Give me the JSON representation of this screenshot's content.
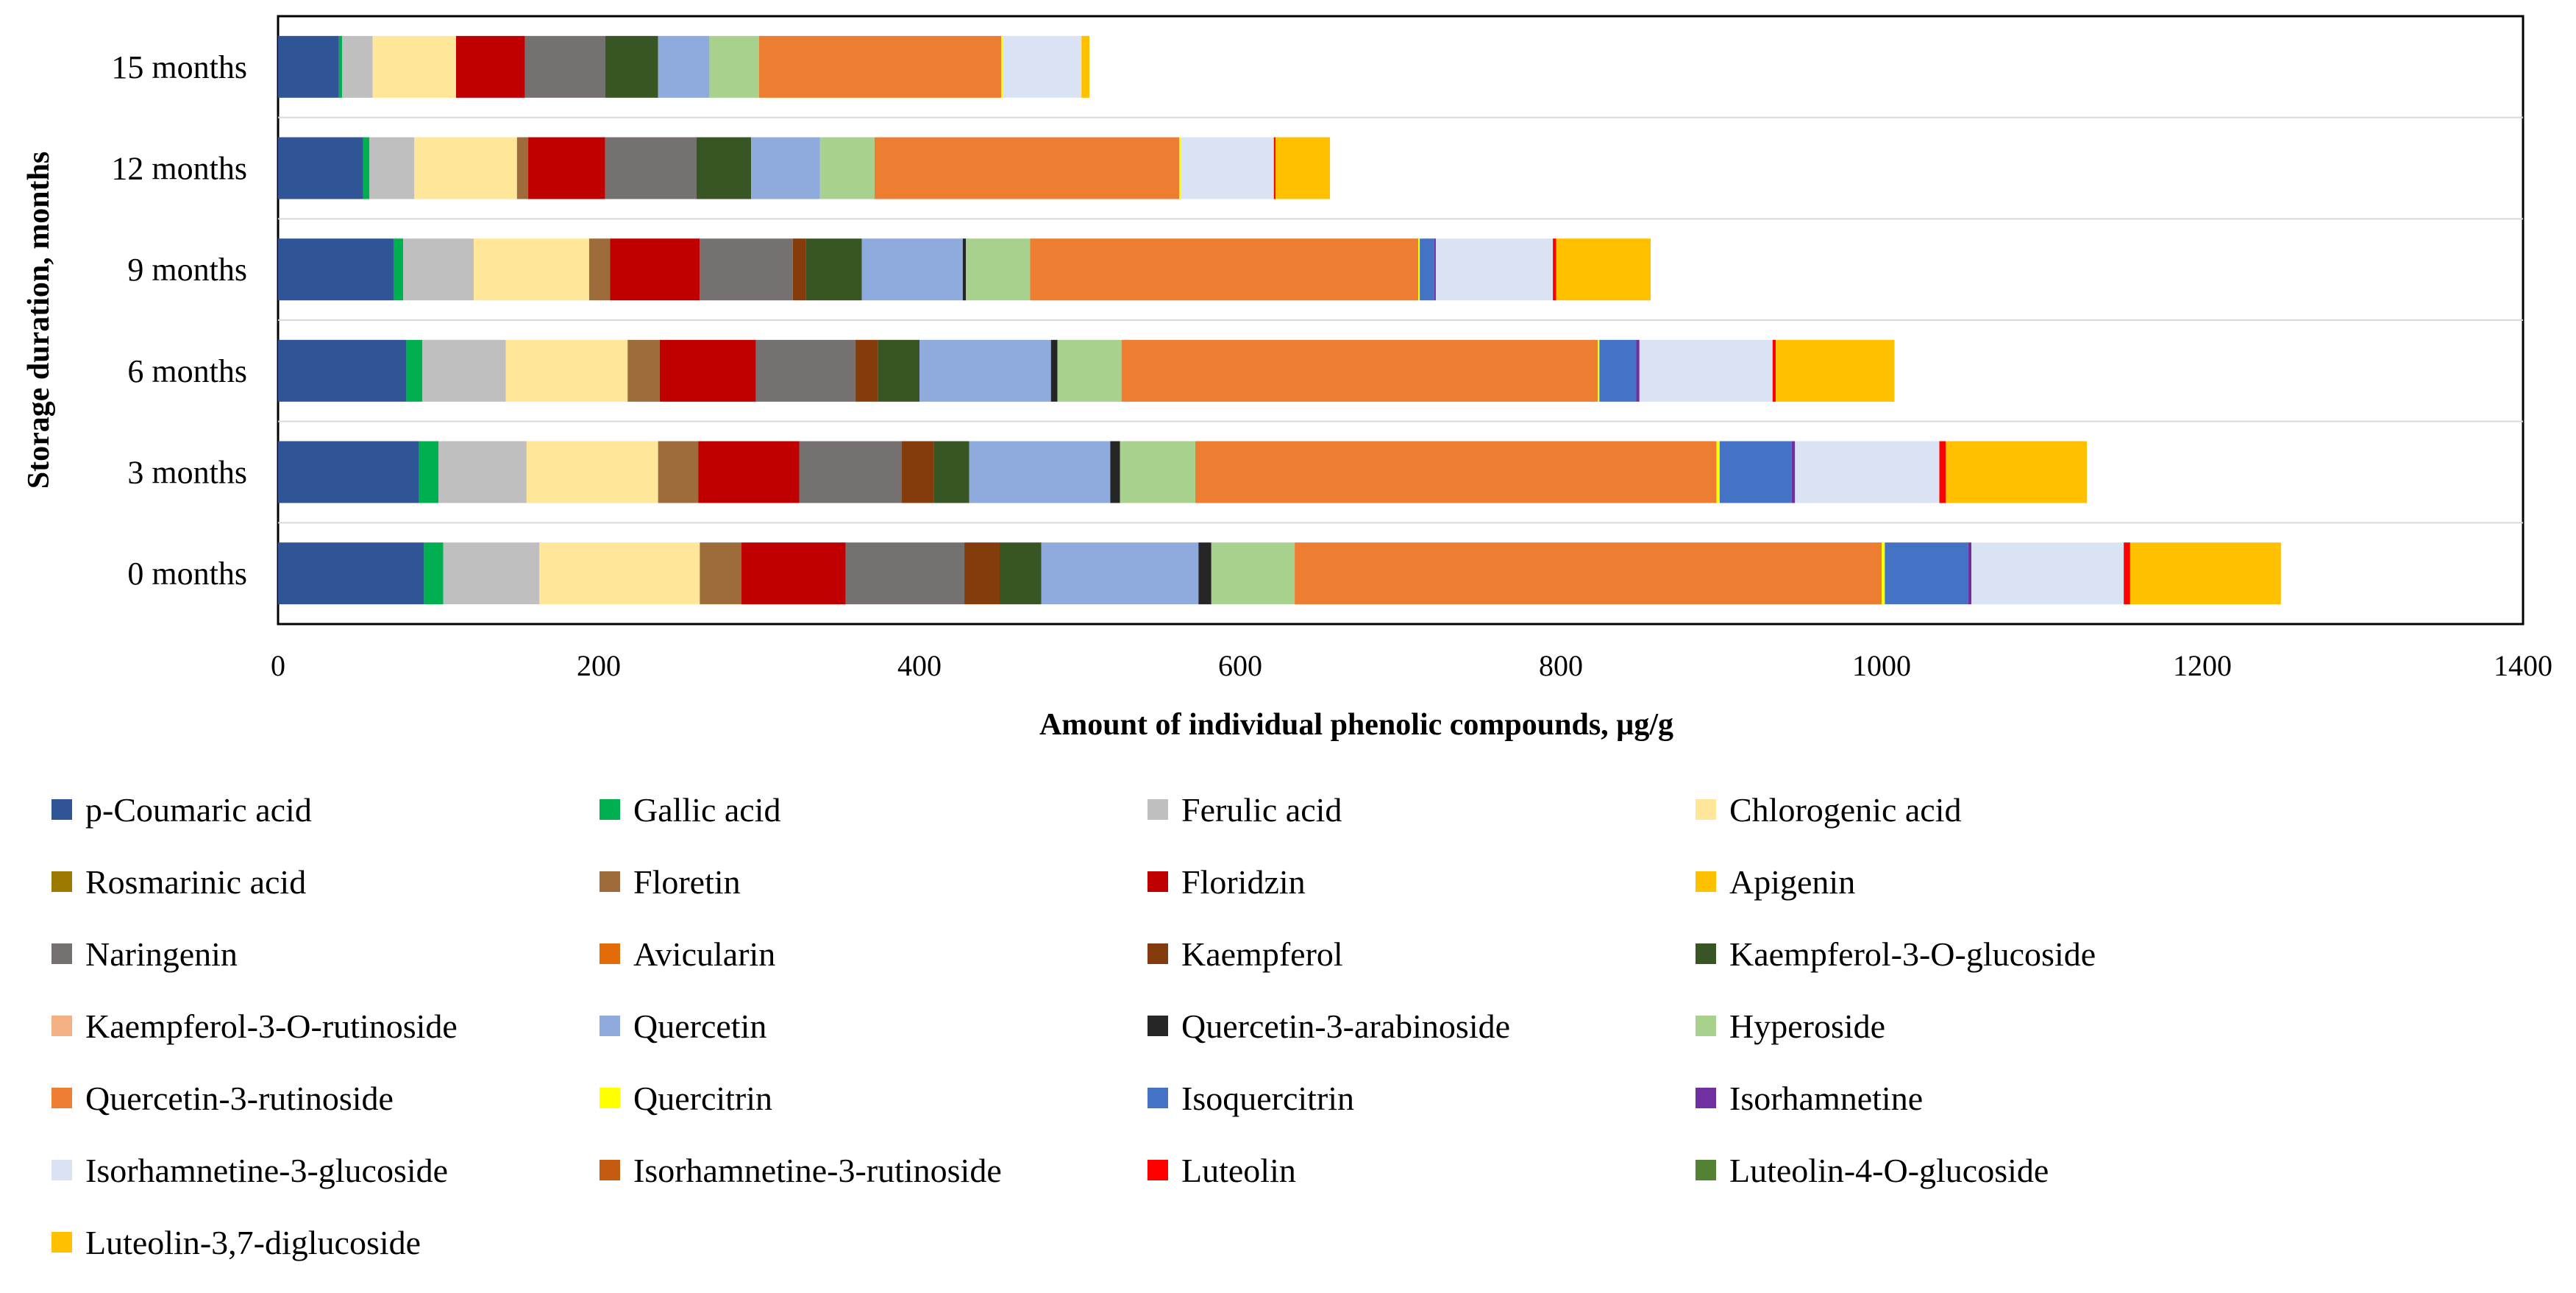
{
  "chart_data": {
    "type": "bar",
    "orientation": "horizontal",
    "stacked": true,
    "title": "",
    "xlabel": "Amount of individual  phenolic  compounds, µg/g",
    "ylabel": "Storage duration,  months",
    "xlim": [
      0,
      1400
    ],
    "xticks": [
      "0",
      "200",
      "400",
      "600",
      "800",
      "1000",
      "1200",
      "1400"
    ],
    "grid": "horizontal",
    "legend_position": "bottom",
    "categories": [
      "0 months",
      "3 months",
      "6 months",
      "9 months",
      "12 months",
      "15 months"
    ],
    "series": [
      {
        "name": "p-Coumaric acid",
        "color": "#2F5597",
        "values": [
          91,
          88,
          80,
          72,
          53,
          38
        ]
      },
      {
        "name": "Gallic acid",
        "color": "#00B050",
        "values": [
          12,
          12,
          10,
          6,
          4,
          2
        ]
      },
      {
        "name": "Ferulic acid",
        "color": "#BFBFBF",
        "values": [
          60,
          55,
          52,
          44,
          28,
          19
        ]
      },
      {
        "name": "Chlorogenic acid",
        "color": "#FFE699",
        "values": [
          100,
          82,
          76,
          72,
          64,
          52
        ]
      },
      {
        "name": "Rosmarinic acid",
        "color": "#9C7A00",
        "values": [
          0,
          0,
          0,
          0,
          0,
          0
        ]
      },
      {
        "name": "Floretin",
        "color": "#9E6B3A",
        "values": [
          26,
          25,
          20,
          13,
          7,
          0
        ]
      },
      {
        "name": "Floridzin",
        "color": "#C00000",
        "values": [
          65,
          63,
          60,
          56,
          48,
          43
        ]
      },
      {
        "name": "Apigenin",
        "color": "#FFC000",
        "values": [
          0,
          0,
          0,
          0,
          0,
          0
        ]
      },
      {
        "name": "Naringenin",
        "color": "#767171",
        "values": [
          74,
          64,
          62,
          58,
          57,
          50
        ]
      },
      {
        "name": "Avicularin",
        "color": "#E36C09",
        "values": [
          0,
          0,
          0,
          0,
          0,
          0
        ]
      },
      {
        "name": "Kaempferol",
        "color": "#843C0C",
        "values": [
          22,
          20,
          14,
          8,
          0,
          0
        ]
      },
      {
        "name": "Kaempferol-3-O-glucoside",
        "color": "#375623",
        "values": [
          26,
          22,
          26,
          35,
          34,
          33
        ]
      },
      {
        "name": "Kaempferol-3-O-rutinoside",
        "color": "#F4B183",
        "values": [
          0,
          0,
          0,
          0,
          0,
          0
        ]
      },
      {
        "name": "Quercetin",
        "color": "#8FAADC",
        "values": [
          98,
          88,
          82,
          63,
          43,
          32
        ]
      },
      {
        "name": "Quercetin-3-arabinoside",
        "color": "#262626",
        "values": [
          8,
          6,
          4,
          2,
          0,
          0
        ]
      },
      {
        "name": "Hyperoside",
        "color": "#A9D18E",
        "values": [
          52,
          47,
          40,
          40,
          34,
          31
        ]
      },
      {
        "name": "Quercetin-3-rutinoside",
        "color": "#ED7D31",
        "values": [
          366,
          325,
          297,
          242,
          190,
          151
        ]
      },
      {
        "name": "Quercitrin",
        "color": "#FFFF00",
        "values": [
          2,
          2,
          1,
          1,
          1,
          1
        ]
      },
      {
        "name": "Isoquercitrin",
        "color": "#4472C4",
        "values": [
          52,
          45,
          23,
          9,
          0,
          0
        ]
      },
      {
        "name": "Isorhamnetine",
        "color": "#7030A0",
        "values": [
          2,
          2,
          2,
          1,
          0,
          0
        ]
      },
      {
        "name": "Isorhamnetine-3-glucoside",
        "color": "#DAE3F3",
        "values": [
          95,
          90,
          83,
          73,
          58,
          49
        ]
      },
      {
        "name": "Isorhamnetine-3-rutinoside",
        "color": "#C55A11",
        "values": [
          0,
          0,
          0,
          0,
          0,
          0
        ]
      },
      {
        "name": "Luteolin",
        "color": "#FF0000",
        "values": [
          4,
          4,
          2,
          2,
          1,
          0
        ]
      },
      {
        "name": "Luteolin-4-O-glucoside",
        "color": "#548235",
        "values": [
          0,
          0,
          0,
          0,
          0,
          0
        ]
      },
      {
        "name": "Luteolin-3,7-diglucoside",
        "color": "#FFC000",
        "values": [
          94,
          88,
          74,
          59,
          34,
          5
        ]
      }
    ]
  }
}
